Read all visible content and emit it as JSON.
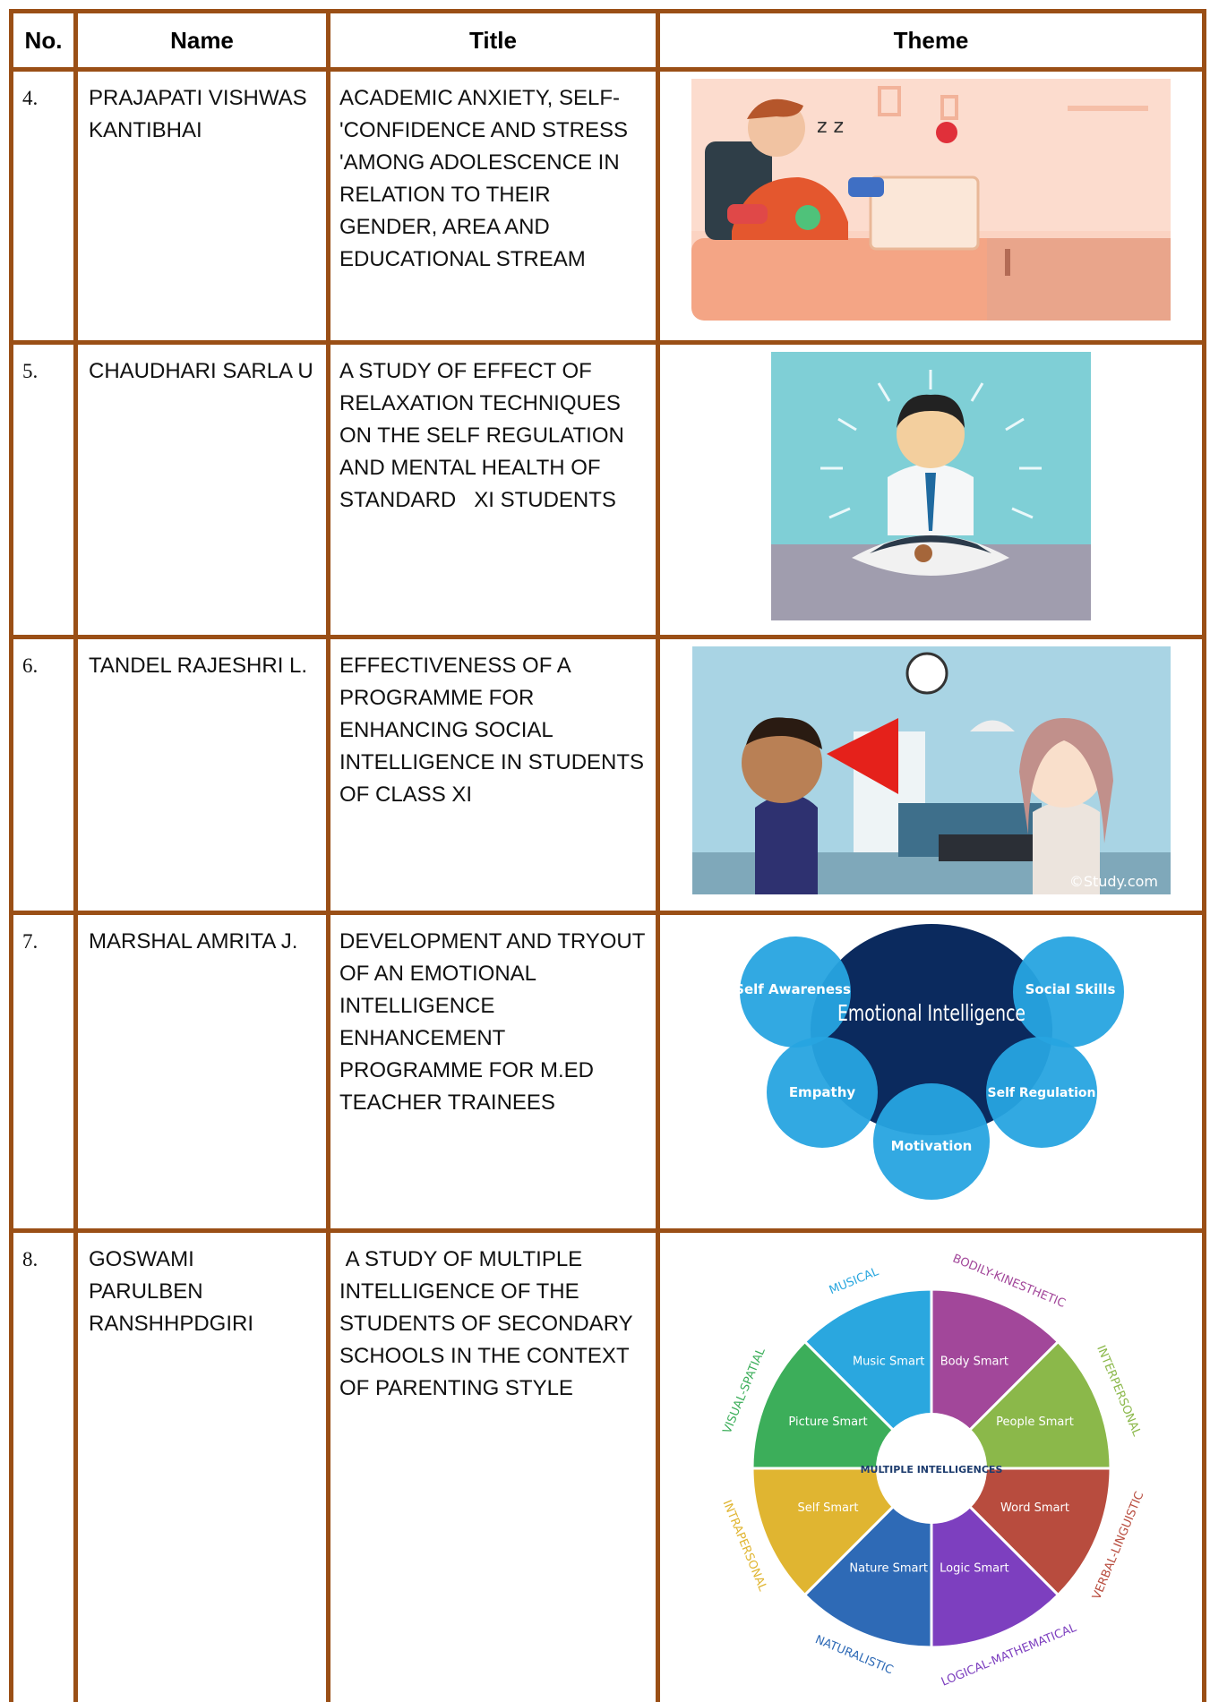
{
  "table": {
    "header": [
      "No.",
      "Name",
      "Title",
      "Theme"
    ],
    "rows": [
      {
        "no": "4.",
        "name": "PRAJAPATI VISHWAS KANTIBHAI",
        "title": "ACADEMIC ANXIETY, SELF-'CONFIDENCE AND STRESS 'AMONG ADOLESCENCE IN RELATION TO THEIR GENDER, AREA AND EDUCATIONAL STREAM"
      },
      {
        "no": "5.",
        "name": "CHAUDHARI SARLA U",
        "title": "A STUDY OF EFFECT OF RELAXATION TECHNIQUES ON THE SELF REGULATION AND MENTAL HEALTH OF STANDARD   XI STUDENTS"
      },
      {
        "no": "6.",
        "name": "TANDEL RAJESHRI L.",
        "title": "EFFECTIVENESS OF A PROGRAMME FOR ENHANCING SOCIAL INTELLIGENCE IN STUDENTS OF CLASS XI",
        "theme": {
          "watermark": "©Study.com"
        }
      },
      {
        "no": "7.",
        "name": "MARSHAL AMRITA J.",
        "title": "DEVELOPMENT AND TRYOUT OF AN EMOTIONAL INTELLIGENCE ENHANCEMENT PROGRAMME FOR M.ED TEACHER TRAINEES",
        "theme": {
          "center": "Emotional Intelligence",
          "bubbles": [
            "Self Awareness",
            "Social Skills",
            "Empathy",
            "Self Regulation",
            "Motivation"
          ]
        }
      },
      {
        "no": "8.",
        "name": "GOSWAMI PARULBEN RANSHHPDGIRI",
        "title": " A STUDY OF MULTIPLE INTELLIGENCE OF THE STUDENTS OF SECONDARY SCHOOLS IN THE CONTEXT OF PARENTING STYLE",
        "theme": {
          "center": "MULTIPLE INTELLIGENCES",
          "segments": [
            {
              "outer": "MUSICAL",
              "inner": "Music Smart"
            },
            {
              "outer": "BODILY-KINESTHETIC",
              "inner": "Body Smart"
            },
            {
              "outer": "INTERPERSONAL",
              "inner": "People Smart"
            },
            {
              "outer": "VERBAL-LINGUISTIC",
              "inner": "Word Smart"
            },
            {
              "outer": "LOGICAL-MATHEMATICAL",
              "inner": "Logic Smart"
            },
            {
              "outer": "NATURALISTIC",
              "inner": "Nature Smart"
            },
            {
              "outer": "INTRAPERSONAL",
              "inner": "Self Smart"
            },
            {
              "outer": "VISUAL-SPATIAL",
              "inner": "Picture Smart"
            }
          ]
        }
      }
    ]
  }
}
